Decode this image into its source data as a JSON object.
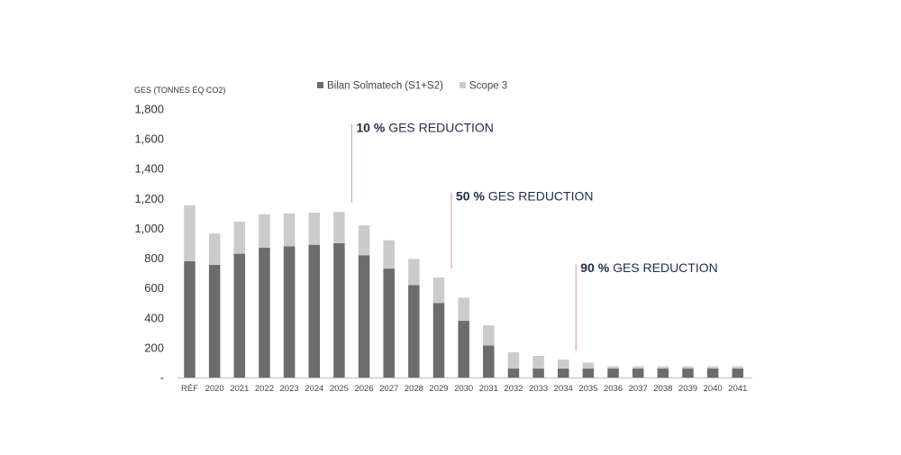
{
  "chart_data": {
    "type": "bar",
    "stacked": true,
    "title": "",
    "xlabel": "",
    "ylabel": "GES (TONNES ÉQ CO2)",
    "ylim": [
      0,
      1800
    ],
    "yticks": [
      0,
      200,
      400,
      600,
      800,
      1000,
      1200,
      1400,
      1600,
      1800
    ],
    "ytick_labels": [
      "-",
      "200",
      "400",
      "600",
      "800",
      "1,000",
      "1,200",
      "1,400",
      "1,600",
      "1,800"
    ],
    "grid": false,
    "legend_position": "top",
    "categories": [
      "RÉF",
      "2020",
      "2021",
      "2022",
      "2023",
      "2024",
      "2025",
      "2026",
      "2027",
      "2028",
      "2029",
      "2030",
      "2031",
      "2032",
      "2033",
      "2034",
      "2035",
      "2036",
      "2037",
      "2038",
      "2039",
      "2040",
      "2041"
    ],
    "series": [
      {
        "name": "Bilan Solmatech (S1+S2)",
        "color": "#6d6b6b",
        "values": [
          780,
          755,
          830,
          870,
          880,
          890,
          900,
          820,
          730,
          620,
          500,
          380,
          215,
          60,
          60,
          60,
          60,
          60,
          60,
          60,
          60,
          60,
          60
        ]
      },
      {
        "name": "Scope 3",
        "color": "#cccbcb",
        "values": [
          375,
          210,
          215,
          225,
          220,
          215,
          210,
          200,
          190,
          175,
          170,
          155,
          135,
          110,
          85,
          60,
          40,
          15,
          15,
          15,
          15,
          15,
          15
        ]
      }
    ],
    "annotations": [
      {
        "category": "2025",
        "top_value": 1700,
        "pct": "10 %",
        "text": "GES REDUCTION"
      },
      {
        "category": "2029",
        "top_value": 1240,
        "pct": "50 %",
        "text": "GES REDUCTION"
      },
      {
        "category": "2034",
        "top_value": 760,
        "pct": "90 %",
        "text": "GES REDUCTION"
      }
    ],
    "annotation_line_color": "#e8a0a8"
  }
}
